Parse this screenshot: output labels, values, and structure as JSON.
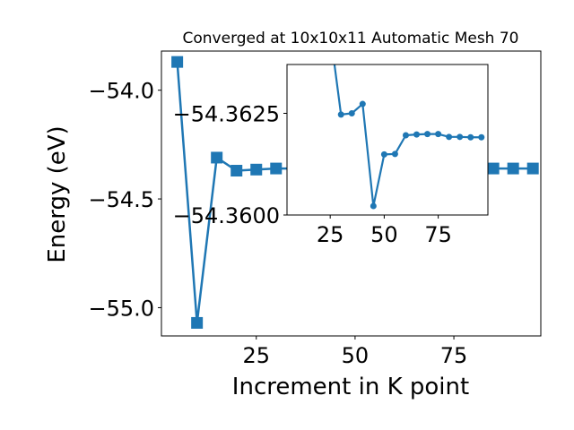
{
  "chart_data": [
    {
      "type": "line",
      "title": "Converged at 10x10x11 Automatic Mesh 70",
      "xlabel": "Increment in K point",
      "ylabel": "Energy (eV)",
      "xlim": [
        1,
        97
      ],
      "ylim": [
        -55.13,
        -53.82
      ],
      "xticks": [
        25,
        50,
        75
      ],
      "xtick_labels": [
        "25",
        "50",
        "75"
      ],
      "yticks": [
        -54.0,
        -54.5,
        -55.0
      ],
      "ytick_labels": [
        "−54.0",
        "−54.5",
        "−55.0"
      ],
      "marker": "square",
      "color": "#1f77b4",
      "x": [
        5,
        10,
        15,
        20,
        25,
        30,
        35,
        40,
        45,
        50,
        55,
        60,
        65,
        70,
        75,
        80,
        85,
        90,
        95
      ],
      "y": [
        -53.87,
        -55.07,
        -54.31,
        -54.37,
        -54.365,
        -54.36,
        -54.36,
        -54.36,
        -54.36,
        -54.36,
        -54.36,
        -54.36,
        -54.36,
        -54.36,
        -54.36,
        -54.36,
        -54.36,
        -54.36,
        -54.36
      ]
    },
    {
      "type": "line",
      "title": "",
      "xlabel": "",
      "ylabel": "",
      "xlim": [
        5,
        98
      ],
      "ylim": [
        -54.36,
        -54.3637
      ],
      "xticks": [
        25,
        50,
        75
      ],
      "xtick_labels": [
        "25",
        "50",
        "75"
      ],
      "yticks": [
        -54.3625,
        -54.36
      ],
      "ytick_labels": [
        "−54.3625",
        "−54.3600"
      ],
      "marker": "circle",
      "color": "#1f77b4",
      "x": [
        25,
        30,
        35,
        40,
        45,
        50,
        55,
        60,
        65,
        70,
        75,
        80,
        85,
        90,
        95
      ],
      "y": [
        -54.3645,
        -54.36247,
        -54.3625,
        -54.36273,
        -54.36022,
        -54.36149,
        -54.3615,
        -54.36196,
        -54.36198,
        -54.36199,
        -54.36199,
        -54.36192,
        -54.36192,
        -54.36191,
        -54.36191
      ]
    }
  ]
}
